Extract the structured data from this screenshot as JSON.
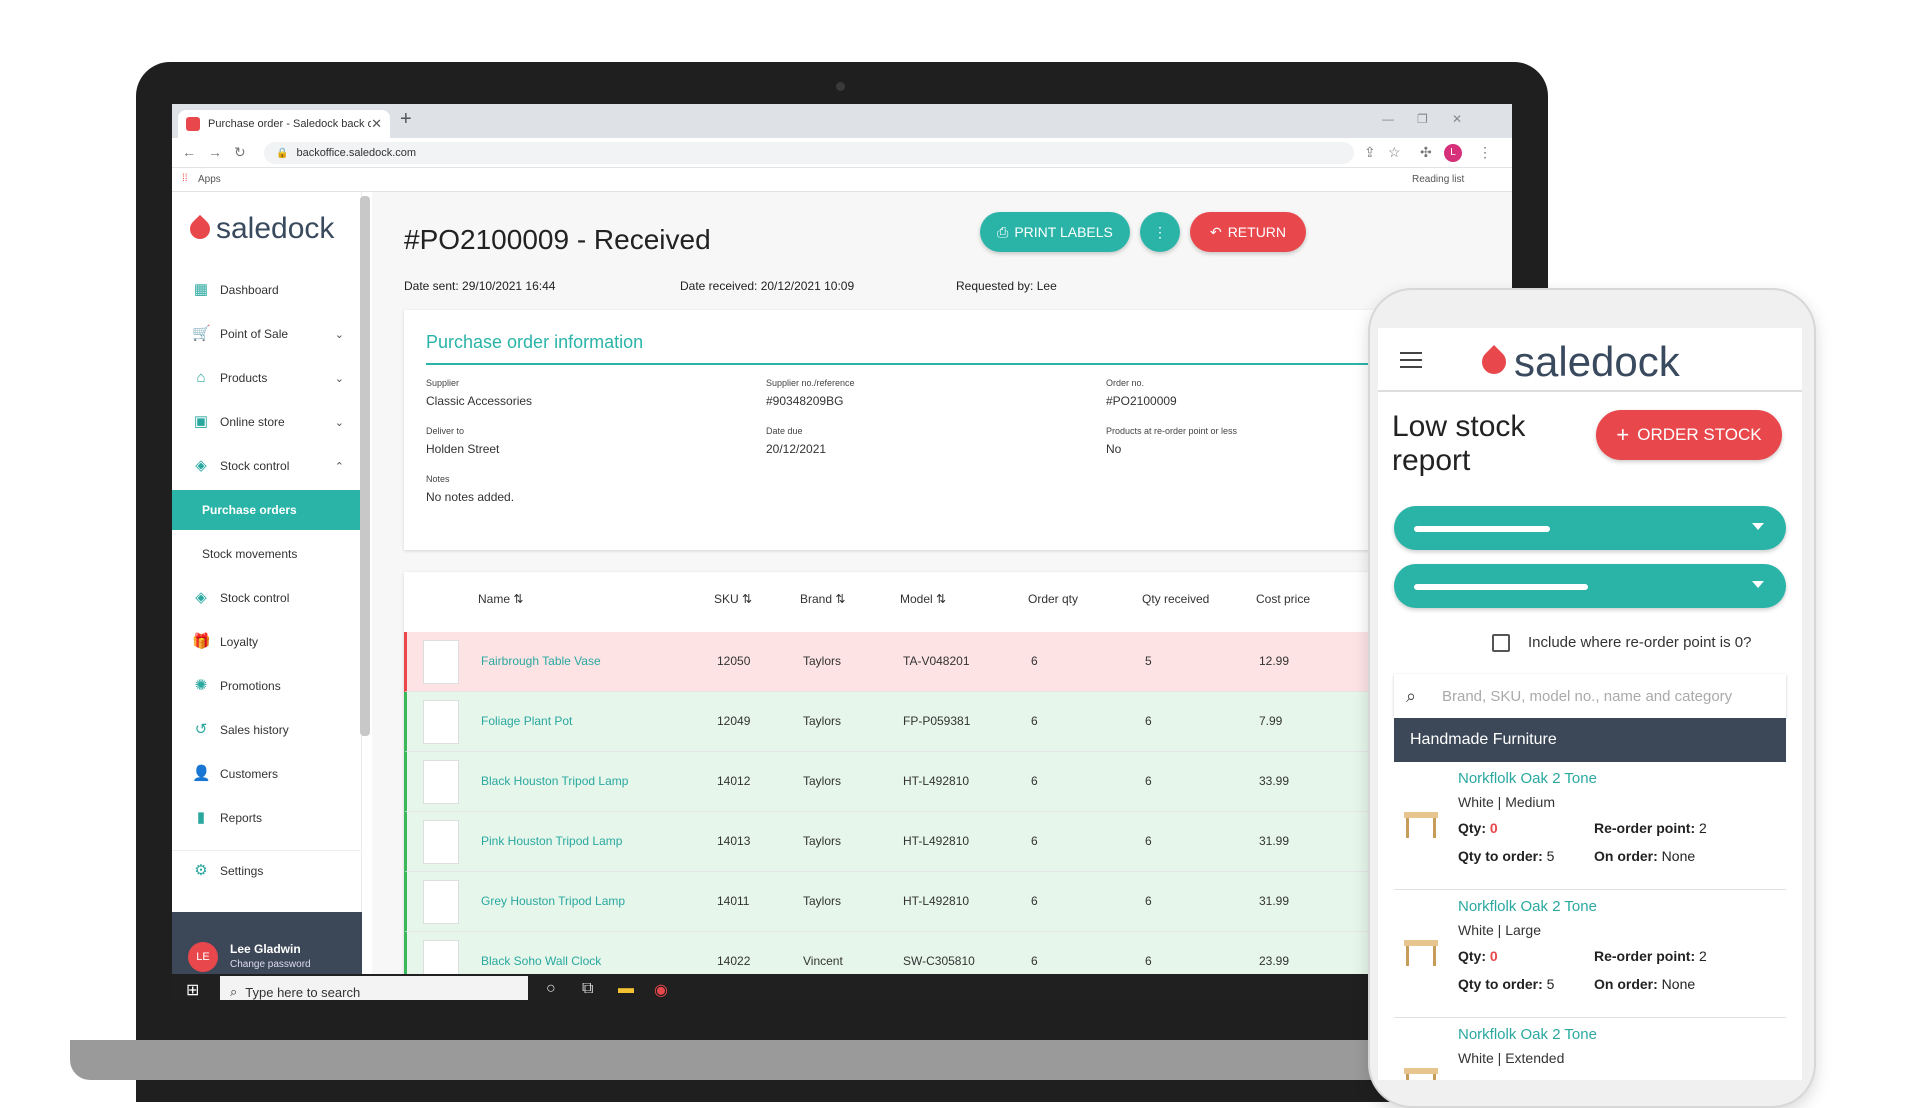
{
  "browser": {
    "tab_title": "Purchase order - Saledock back o",
    "url": "backoffice.saledock.com",
    "bookmarks_apps": "Apps",
    "reading_list": "Reading list"
  },
  "app": {
    "brand": "saledock",
    "sidebar": [
      {
        "label": "Dashboard",
        "icon": "dashboard-icon"
      },
      {
        "label": "Point of Sale",
        "icon": "cart-icon"
      },
      {
        "label": "Products",
        "icon": "tag-icon"
      },
      {
        "label": "Online store",
        "icon": "store-icon"
      },
      {
        "label": "Stock control",
        "icon": "box-icon"
      },
      {
        "label": "Purchase orders"
      },
      {
        "label": "Stock movements"
      },
      {
        "label": "Stock control",
        "icon": "box-icon"
      },
      {
        "label": "Loyalty",
        "icon": "gift-icon"
      },
      {
        "label": "Promotions",
        "icon": "badge-icon"
      },
      {
        "label": "Sales history",
        "icon": "history-icon"
      },
      {
        "label": "Customers",
        "icon": "user-icon"
      },
      {
        "label": "Reports",
        "icon": "bar-chart-icon"
      },
      {
        "label": "Settings",
        "icon": "gear-icon"
      }
    ],
    "user": {
      "initials": "LE",
      "name": "Lee Gladwin",
      "action": "Change password"
    }
  },
  "page": {
    "title": "#PO2100009 - Received",
    "buttons": {
      "print": "PRINT LABELS",
      "more": "⋮",
      "return": "RETURN"
    },
    "date_sent": "Date sent: 29/10/2021 16:44",
    "date_received": "Date received: 20/12/2021 10:09",
    "requested_by": "Requested by: Lee"
  },
  "info": {
    "heading": "Purchase order information",
    "fields": [
      {
        "label": "Supplier",
        "value": "Classic Accessories"
      },
      {
        "label": "Supplier no./reference",
        "value": "#90348209BG"
      },
      {
        "label": "Order no.",
        "value": "#PO2100009"
      },
      {
        "label": "Deliver to",
        "value": "Holden Street"
      },
      {
        "label": "Date due",
        "value": "20/12/2021"
      },
      {
        "label": "Products at re-order point or less",
        "value": "No"
      },
      {
        "label": "Notes",
        "value": "No notes added."
      }
    ]
  },
  "table": {
    "headers": [
      "Name",
      "SKU",
      "Brand",
      "Model",
      "Order qty",
      "Qty received",
      "Cost price"
    ],
    "rows": [
      {
        "name": "Fairbrough Table Vase",
        "sku": "12050",
        "brand": "Taylors",
        "model": "TA-V048201",
        "order_qty": "6",
        "received": "5",
        "cost": "12.99",
        "status": "short"
      },
      {
        "name": "Foliage Plant Pot",
        "sku": "12049",
        "brand": "Taylors",
        "model": "FP-P059381",
        "order_qty": "6",
        "received": "6",
        "cost": "7.99",
        "status": "ok"
      },
      {
        "name": "Black Houston Tripod Lamp",
        "sku": "14012",
        "brand": "Taylors",
        "model": "HT-L492810",
        "order_qty": "6",
        "received": "6",
        "cost": "33.99",
        "status": "ok"
      },
      {
        "name": "Pink Houston Tripod Lamp",
        "sku": "14013",
        "brand": "Taylors",
        "model": "HT-L492810",
        "order_qty": "6",
        "received": "6",
        "cost": "31.99",
        "status": "ok"
      },
      {
        "name": "Grey Houston Tripod Lamp",
        "sku": "14011",
        "brand": "Taylors",
        "model": "HT-L492810",
        "order_qty": "6",
        "received": "6",
        "cost": "31.99",
        "status": "ok"
      },
      {
        "name": "Black Soho Wall Clock",
        "sku": "14022",
        "brand": "Vincent",
        "model": "SW-C305810",
        "order_qty": "6",
        "received": "6",
        "cost": "23.99",
        "status": "ok"
      }
    ]
  },
  "taskbar": {
    "search_placeholder": "Type here to search"
  },
  "phone": {
    "brand": "saledock",
    "title": "Low stock report",
    "order_button": "ORDER STOCK",
    "checkbox_label": "Include where re-order point is 0?",
    "search_placeholder": "Brand, SKU, model no., name and category",
    "category": "Handmade Furniture",
    "qty_label": "Qty:",
    "reorder_label": "Re-order point:",
    "to_order_label": "Qty to order:",
    "on_order_label": "On order:",
    "items": [
      {
        "name": "Norkflolk Oak 2 Tone",
        "variant": "White | Medium",
        "qty": "0",
        "reorder": "2",
        "to_order": "5",
        "on_order": "None"
      },
      {
        "name": "Norkflolk Oak 2 Tone",
        "variant": "White | Large",
        "qty": "0",
        "reorder": "2",
        "to_order": "5",
        "on_order": "None"
      },
      {
        "name": "Norkflolk Oak 2 Tone",
        "variant": "White | Extended"
      }
    ]
  },
  "colors": {
    "teal": "#2ab4a8",
    "red": "#e8474c",
    "navy": "#3c4858",
    "short_row": "#fde3e4",
    "ok_row": "#e6f6ea"
  }
}
